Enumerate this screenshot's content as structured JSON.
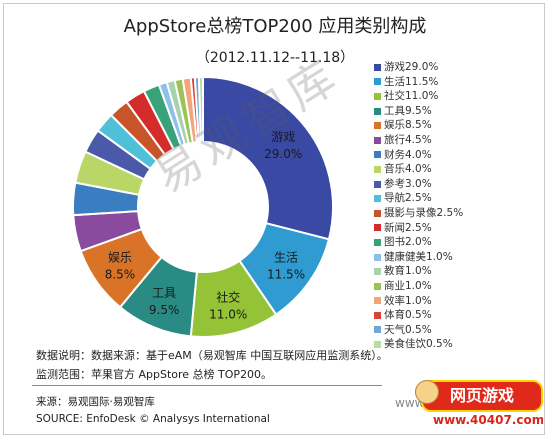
{
  "chart_data": {
    "type": "pie",
    "donut": true,
    "title": "AppStore总榜TOP200 应用类别构成",
    "subtitle": "（2012.11.12--11.18）",
    "unit": "%",
    "legend_position": "right",
    "slices": [
      {
        "name": "游戏",
        "value": 29.0,
        "legend": "游戏29.0%",
        "color": "#3a49a4"
      },
      {
        "name": "生活",
        "value": 11.5,
        "legend": "生活11.5%",
        "color": "#2f9bd0"
      },
      {
        "name": "社交",
        "value": 11.0,
        "legend": "社交11.0%",
        "color": "#94c337"
      },
      {
        "name": "工具",
        "value": 9.5,
        "legend": "工具9.5%",
        "color": "#2a8a84"
      },
      {
        "name": "娱乐",
        "value": 8.5,
        "legend": "娱乐8.5%",
        "color": "#d97327"
      },
      {
        "name": "旅行",
        "value": 4.5,
        "legend": "旅行4.5%",
        "color": "#8a4a9e"
      },
      {
        "name": "财务",
        "value": 4.0,
        "legend": "财务4.0%",
        "color": "#3a7dc0"
      },
      {
        "name": "音乐",
        "value": 4.0,
        "legend": "音乐4.0%",
        "color": "#b9d667"
      },
      {
        "name": "参考",
        "value": 3.0,
        "legend": "参考3.0%",
        "color": "#4a5aa8"
      },
      {
        "name": "导航",
        "value": 2.5,
        "legend": "导航2.5%",
        "color": "#50c0d8"
      },
      {
        "name": "摄影与录像",
        "value": 2.5,
        "legend": "摄影与录像2.5%",
        "color": "#c8552a"
      },
      {
        "name": "新闻",
        "value": 2.5,
        "legend": "新闻2.5%",
        "color": "#d42b2b"
      },
      {
        "name": "图书",
        "value": 2.0,
        "legend": "图书2.0%",
        "color": "#3aa27a"
      },
      {
        "name": "健康健美",
        "value": 1.0,
        "legend": "健康健美1.0%",
        "color": "#8cc0e8"
      },
      {
        "name": "教育",
        "value": 1.0,
        "legend": "教育1.0%",
        "color": "#a6d2ad"
      },
      {
        "name": "商业",
        "value": 1.0,
        "legend": "商业1.0%",
        "color": "#9bc456"
      },
      {
        "name": "效率",
        "value": 1.0,
        "legend": "效率1.0%",
        "color": "#f2a57a"
      },
      {
        "name": "体育",
        "value": 0.5,
        "legend": "体育0.5%",
        "color": "#d9443a"
      },
      {
        "name": "天气",
        "value": 0.5,
        "legend": "天气0.5%",
        "color": "#6fa8d8"
      },
      {
        "name": "美食佳饮",
        "value": 0.5,
        "legend": "美食佳饮0.5%",
        "color": "#b7dc9e"
      }
    ],
    "inner_labels": [
      {
        "slice": 0,
        "name": "游戏",
        "value_text": "29.0%"
      },
      {
        "slice": 1,
        "name": "生活",
        "value_text": "11.5%"
      },
      {
        "slice": 2,
        "name": "社交",
        "value_text": "11.0%"
      },
      {
        "slice": 3,
        "name": "工具",
        "value_text": "9.5%"
      },
      {
        "slice": 4,
        "name": "娱乐",
        "value_text": "8.5%"
      }
    ]
  },
  "notes": {
    "line1": "数据说明：数据来源：基于eAM（易观智库 中国互联网应用监测系统）。",
    "line2": "监测范围：苹果官方 AppStore 总榜 TOP200。"
  },
  "source": {
    "line1": "来源：易观国际·易观智库",
    "line2": "SOURCE: EnfoDesk © Analysys International"
  },
  "watermark": {
    "text": "易观智库",
    "corner_text": "www"
  },
  "brand": {
    "name": "网页游戏",
    "url": "www.40407.com"
  }
}
